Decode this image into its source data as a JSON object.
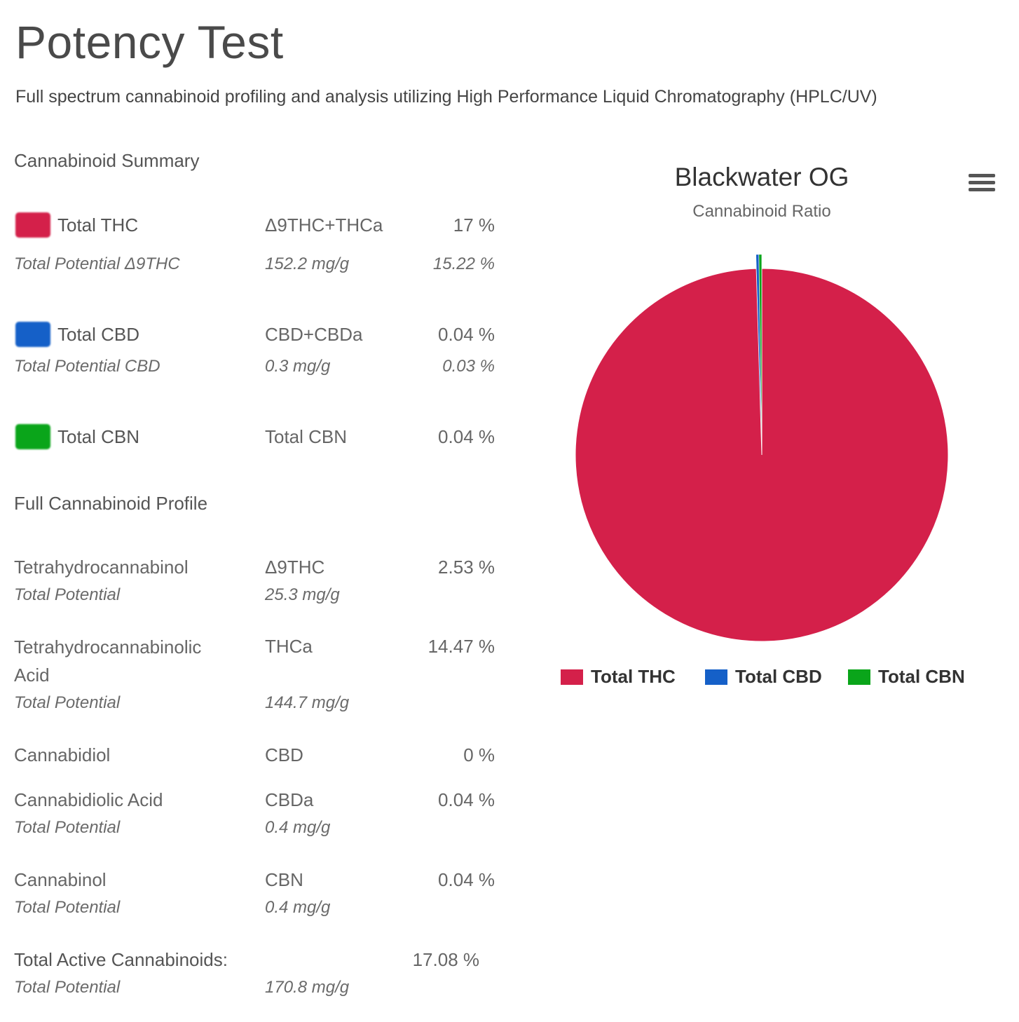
{
  "header": {
    "title": "Potency Test",
    "subtitle": "Full spectrum cannabinoid profiling and analysis utilizing High Performance Liquid Chromatography (HPLC/UV)"
  },
  "summary": {
    "heading": "Cannabinoid Summary",
    "items": [
      {
        "label": "Total THC",
        "method": "Δ9THC+THCa",
        "value": "17 %",
        "color": "#d4204a",
        "potential": {
          "label": "Total Potential Δ9THC",
          "amount": "152.2 mg/g",
          "percent": "15.22 %"
        }
      },
      {
        "label": "Total CBD",
        "method": "CBD+CBDa",
        "value": "0.04 %",
        "color": "#1560c8",
        "potential": {
          "label": "Total Potential CBD",
          "amount": "0.3 mg/g",
          "percent": "0.03 %"
        }
      },
      {
        "label": "Total CBN",
        "method": "Total CBN",
        "value": "0.04 %",
        "color": "#0aa51a"
      }
    ]
  },
  "profile": {
    "heading": "Full Cannabinoid Profile",
    "items": [
      {
        "name": "Tetrahydrocannabinol",
        "abbr": "Δ9THC",
        "value": "2.53 %",
        "potential_label": "Total Potential",
        "potential": "25.3 mg/g"
      },
      {
        "name": "Tetrahydrocannabinolic Acid",
        "abbr": "THCa",
        "value": "14.47 %",
        "potential_label": "Total Potential",
        "potential": "144.7 mg/g"
      },
      {
        "name": "Cannabidiol",
        "abbr": "CBD",
        "value": "0 %"
      },
      {
        "name": "Cannabidiolic Acid",
        "abbr": "CBDa",
        "value": "0.04 %",
        "potential_label": "Total Potential",
        "potential": "0.4 mg/g"
      },
      {
        "name": "Cannabinol",
        "abbr": "CBN",
        "value": "0.04 %",
        "potential_label": "Total Potential",
        "potential": "0.4 mg/g"
      }
    ],
    "total": {
      "label": "Total Active Cannabinoids:",
      "value": "17.08 %",
      "potential_label": "Total Potential",
      "potential": "170.8 mg/g"
    }
  },
  "chart_data": {
    "type": "pie",
    "title": "Blackwater OG",
    "subtitle": "Cannabinoid Ratio",
    "series": [
      {
        "name": "Total THC",
        "value": 17,
        "color": "#d4204a"
      },
      {
        "name": "Total CBD",
        "value": 0.04,
        "color": "#1560c8"
      },
      {
        "name": "Total CBN",
        "value": 0.04,
        "color": "#0aa51a"
      }
    ],
    "legend": "bottom",
    "menu_icon": "hamburger-menu-icon"
  }
}
